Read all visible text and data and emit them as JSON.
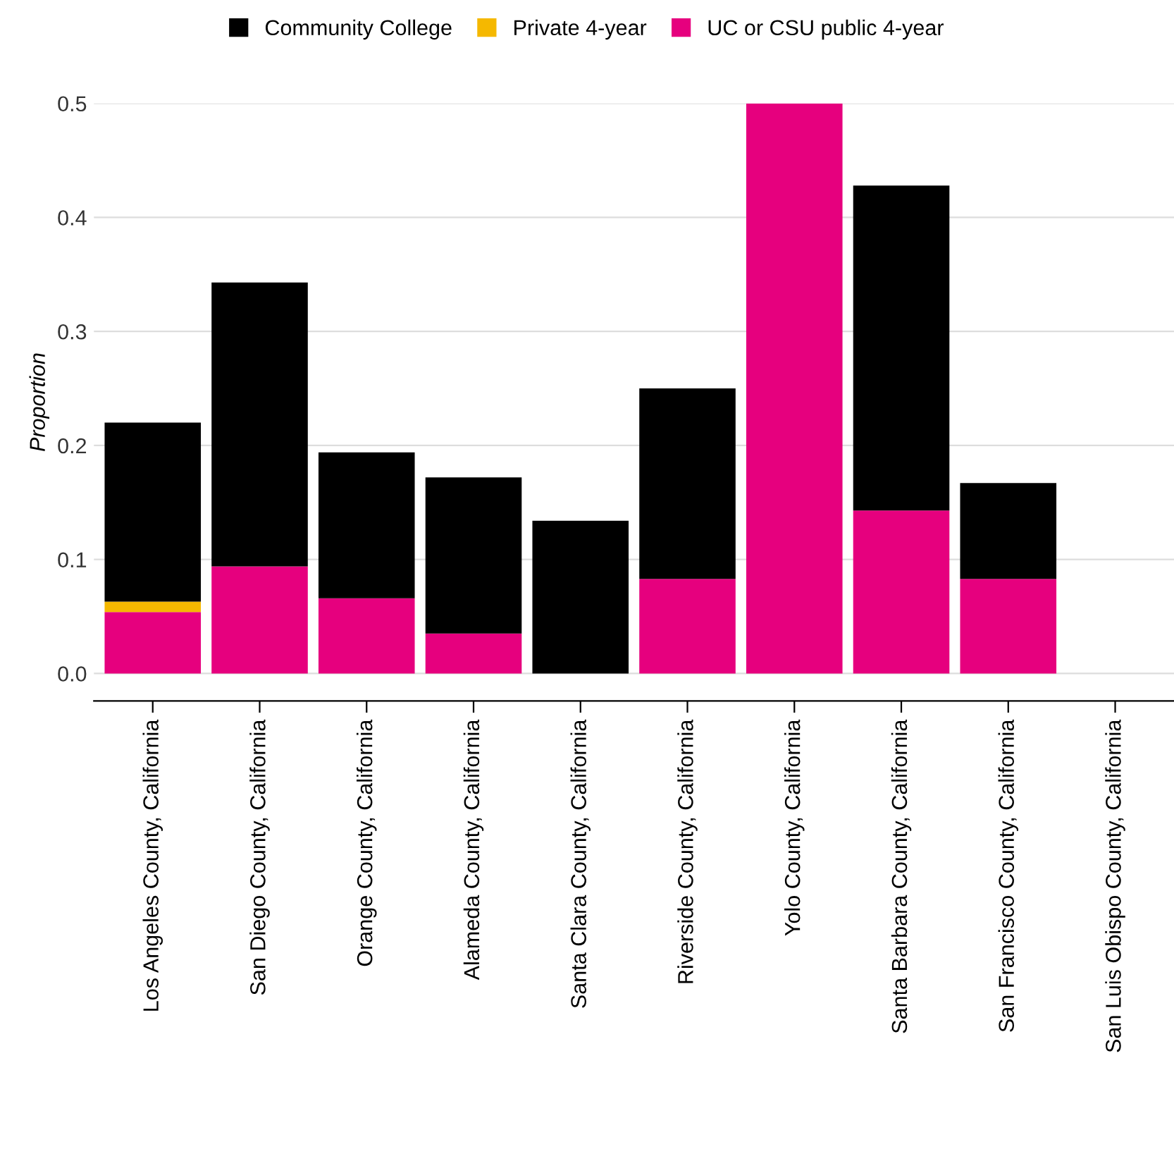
{
  "chart_data": {
    "type": "bar",
    "ylabel": "Proportion",
    "stacked": true,
    "categories": [
      "Los Angeles County, California",
      "San Diego County, California",
      "Orange County, California",
      "Alameda County, California",
      "Santa Clara County, California",
      "Riverside County, California",
      "Yolo County, California",
      "Santa Barbara County, California",
      "San Francisco County, California",
      "San Luis Obispo County, California"
    ],
    "series": [
      {
        "name": "UC or CSU public 4-year",
        "color": "#e6007e",
        "values": [
          0.054,
          0.094,
          0.066,
          0.035,
          0,
          0.083,
          0.5,
          0.143,
          0.083,
          0
        ]
      },
      {
        "name": "Private 4-year",
        "color": "#f5b800",
        "values": [
          0.009,
          0,
          0,
          0,
          0,
          0,
          0,
          0,
          0,
          0
        ]
      },
      {
        "name": "Community College",
        "color": "#000000",
        "values": [
          0.157,
          0.249,
          0.128,
          0.137,
          0.134,
          0.167,
          0,
          0.285,
          0.084,
          0
        ]
      }
    ],
    "ylim": [
      -0.024,
      0.5
    ],
    "yticks": [
      {
        "value": 0,
        "label": "0.0"
      },
      0.1,
      0.2,
      0.3,
      0.4,
      0.5
    ],
    "grid": "y",
    "legend": "top"
  }
}
